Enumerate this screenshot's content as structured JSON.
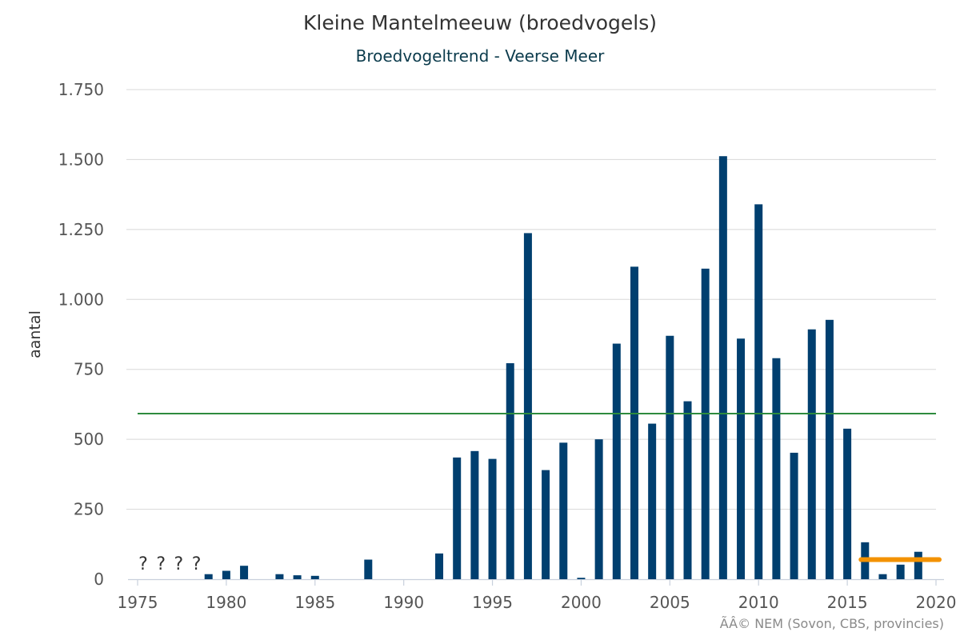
{
  "title": "Kleine Mantelmeeuw (broedvogels)",
  "subtitle": "Broedvogeltrend - Veerse Meer",
  "credit": "ÃÂ© NEM (Sovon, CBS, provincies)",
  "colors": {
    "bar": "#003f6f",
    "mean_line": "#2e8b3e",
    "recent_mean_line": "#f39200",
    "grid": "#d8d8d8",
    "axis_text": "#555555"
  },
  "chart_data": {
    "type": "bar",
    "xlabel": "",
    "ylabel": "aantal",
    "xlim": [
      1975,
      2020
    ],
    "ylim": [
      0,
      1750
    ],
    "x_ticks": [
      1975,
      1980,
      1985,
      1990,
      1995,
      2000,
      2005,
      2010,
      2015,
      2020
    ],
    "y_ticks": [
      0,
      250,
      500,
      750,
      1000,
      1250,
      1500,
      1750
    ],
    "y_tick_labels": [
      "0",
      "250",
      "500",
      "750",
      "1.000",
      "1.250",
      "1.500",
      "1.750"
    ],
    "grid": true,
    "legend": "none",
    "missing_years": [
      1975,
      1976,
      1977,
      1978
    ],
    "missing_marker": "?",
    "points": [
      {
        "x": 1979,
        "y": 18
      },
      {
        "x": 1980,
        "y": 30
      },
      {
        "x": 1981,
        "y": 48
      },
      {
        "x": 1983,
        "y": 18
      },
      {
        "x": 1984,
        "y": 14
      },
      {
        "x": 1985,
        "y": 12
      },
      {
        "x": 1988,
        "y": 70
      },
      {
        "x": 1992,
        "y": 92
      },
      {
        "x": 1993,
        "y": 435
      },
      {
        "x": 1994,
        "y": 458
      },
      {
        "x": 1995,
        "y": 430
      },
      {
        "x": 1996,
        "y": 772
      },
      {
        "x": 1997,
        "y": 1237
      },
      {
        "x": 1998,
        "y": 390
      },
      {
        "x": 1999,
        "y": 488
      },
      {
        "x": 2000,
        "y": 5
      },
      {
        "x": 2001,
        "y": 500
      },
      {
        "x": 2002,
        "y": 842
      },
      {
        "x": 2003,
        "y": 1117
      },
      {
        "x": 2004,
        "y": 556
      },
      {
        "x": 2005,
        "y": 870
      },
      {
        "x": 2006,
        "y": 636
      },
      {
        "x": 2007,
        "y": 1110
      },
      {
        "x": 2008,
        "y": 1512
      },
      {
        "x": 2009,
        "y": 860
      },
      {
        "x": 2010,
        "y": 1340
      },
      {
        "x": 2011,
        "y": 790
      },
      {
        "x": 2012,
        "y": 452
      },
      {
        "x": 2013,
        "y": 893
      },
      {
        "x": 2014,
        "y": 927
      },
      {
        "x": 2015,
        "y": 538
      },
      {
        "x": 2016,
        "y": 132
      },
      {
        "x": 2017,
        "y": 18
      },
      {
        "x": 2018,
        "y": 52
      },
      {
        "x": 2019,
        "y": 98
      }
    ],
    "reference_lines": [
      {
        "y": 592,
        "x_start": 1975,
        "x_end": 2020,
        "color": "#2e8b3e"
      },
      {
        "y": 70,
        "x_start": 2016,
        "x_end": 2020,
        "color": "#f39200"
      }
    ]
  }
}
